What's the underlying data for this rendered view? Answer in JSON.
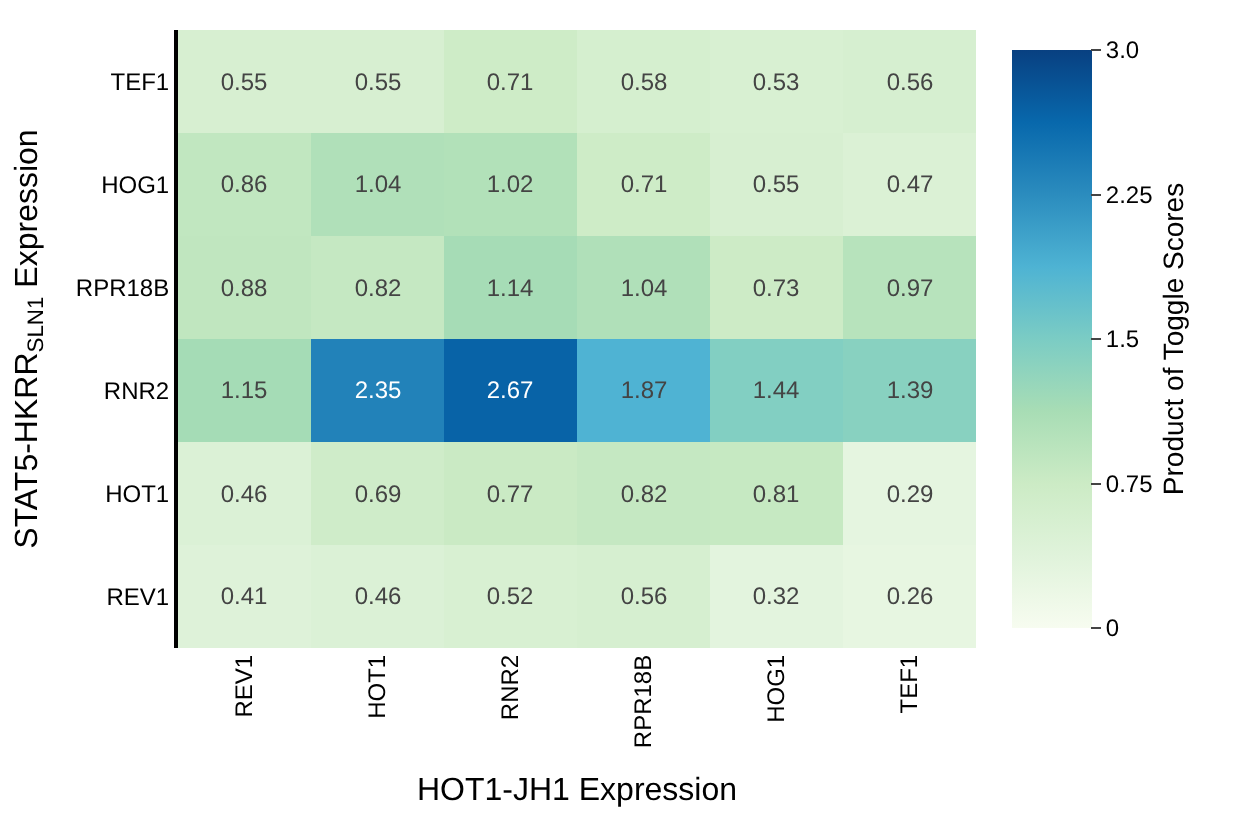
{
  "chart_data": {
    "type": "heatmap",
    "xlabel": "HOT1-JH1 Expression",
    "ylabel": "STAT5-HKRR$_{SLN1}$ Expression",
    "clabel": "Product of Toggle Scores",
    "categories": [
      "REV1",
      "HOT1",
      "RNR2",
      "RPR18B",
      "HOG1",
      "TEF1"
    ],
    "y_categories": [
      "TEF1",
      "HOG1",
      "RPR18B",
      "RNR2",
      "HOT1",
      "REV1"
    ],
    "cells": [
      [
        0.55,
        0.55,
        0.71,
        0.58,
        0.53,
        0.56
      ],
      [
        0.86,
        1.04,
        1.02,
        0.71,
        0.55,
        0.47
      ],
      [
        0.88,
        0.82,
        1.14,
        1.04,
        0.73,
        0.97
      ],
      [
        1.15,
        2.35,
        2.67,
        1.87,
        1.44,
        1.39
      ],
      [
        0.46,
        0.69,
        0.77,
        0.82,
        0.81,
        0.29
      ],
      [
        0.41,
        0.46,
        0.52,
        0.56,
        0.32,
        0.26
      ]
    ],
    "data_labels": true,
    "clim": [
      0,
      3
    ],
    "cticks": [
      0,
      0.75,
      1.5,
      2.25,
      {
        "value": 3,
        "label": "3.0"
      }
    ]
  }
}
